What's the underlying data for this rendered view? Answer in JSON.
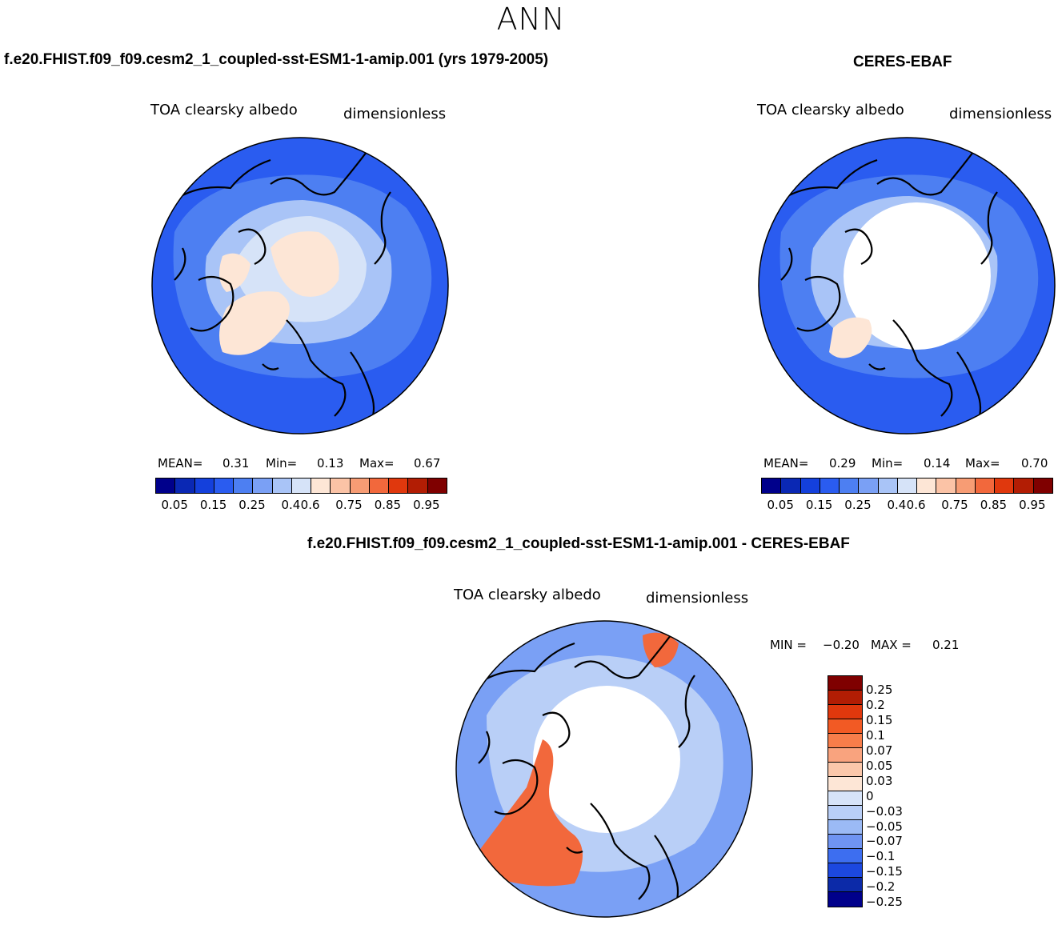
{
  "page": {
    "season": "ANN"
  },
  "panels": [
    {
      "id": "model",
      "title": "f.e20.FHIST.f09_f09.cesm2_1_coupled-sst-ESM1-1-amip.001 (yrs 1979-2005)",
      "variable": "TOA clearsky albedo",
      "units": "dimensionless",
      "mean_label": "MEAN=",
      "mean_value": "0.31",
      "min_label": "Min=",
      "min_value": "0.13",
      "max_label": "Max=",
      "max_value": "0.67"
    },
    {
      "id": "obs",
      "title": "CERES-EBAF",
      "variable": "TOA clearsky albedo",
      "units": "dimensionless",
      "mean_label": "MEAN=",
      "mean_value": "0.29",
      "min_label": "Min=",
      "min_value": "0.14",
      "max_label": "Max=",
      "max_value": "0.70"
    },
    {
      "id": "diff",
      "title": "f.e20.FHIST.f09_f09.cesm2_1_coupled-sst-ESM1-1-amip.001 - CERES-EBAF",
      "variable": "TOA clearsky albedo",
      "units": "dimensionless",
      "min_label": "MIN =",
      "min_value": "−0.20",
      "max_label": "MAX =",
      "max_value": "0.21"
    }
  ],
  "colorbar_abs": {
    "colors": [
      "#00008b",
      "#0a28b4",
      "#1440dc",
      "#2a5cf0",
      "#4d7ff2",
      "#7aa0f5",
      "#a9c4f7",
      "#d6e3f8",
      "#fde6d6",
      "#fbc3a6",
      "#f79c74",
      "#f2683c",
      "#e0380d",
      "#b21d04",
      "#7f0000"
    ],
    "tick_labels": [
      "0.05",
      "0.15",
      "0.25",
      "0.4",
      "0.6",
      "0.75",
      "0.85",
      "0.95"
    ]
  },
  "colorbar_diff": {
    "colors": [
      "#7f0000",
      "#b21d04",
      "#e0380d",
      "#f25a24",
      "#f77d4a",
      "#f9a37e",
      "#fbc7aa",
      "#fde6d6",
      "#d6e3f8",
      "#b9cff7",
      "#9bbaf5",
      "#6f94f2",
      "#3d6ef0",
      "#1c48e0",
      "#0c2aa8",
      "#00008b"
    ],
    "tick_labels": [
      "0.25",
      "0.2",
      "0.15",
      "0.1",
      "0.07",
      "0.05",
      "0.03",
      "0",
      "−0.03",
      "−0.05",
      "−0.07",
      "−0.1",
      "−0.15",
      "−0.2",
      "−0.25"
    ]
  },
  "map_colors": {
    "ocean_deep": "#2a5cf0",
    "ocean_mid": "#4d7ff2",
    "land_light": "#a9c4f7",
    "ice": "#fde6d6",
    "pale": "#d6e3f8",
    "diff_base": "#7aa0f5",
    "diff_pos": "#f2683c",
    "diff_pale": "#b9cff7"
  }
}
